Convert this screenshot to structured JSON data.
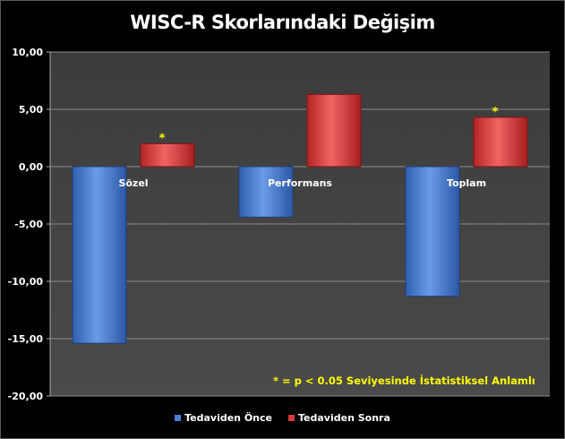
{
  "chart_data": {
    "type": "bar",
    "title": "WISC-R Skorlarındaki Değişim",
    "categories": [
      "Sözel",
      "Performans",
      "Toplam"
    ],
    "series": [
      {
        "name": "Tedaviden Önce",
        "values": [
          -15.4,
          -4.4,
          -11.3
        ],
        "color": "#4a7fd4"
      },
      {
        "name": "Tedaviden Sonra",
        "values": [
          2.0,
          6.3,
          4.3
        ],
        "color": "#d83a3a"
      }
    ],
    "significance_markers": [
      {
        "category": "Sözel",
        "series": "Tedaviden Sonra",
        "label": "*"
      },
      {
        "category": "Toplam",
        "series": "Tedaviden Sonra",
        "label": "*"
      }
    ],
    "annotation": "*  =  p < 0.05 Seviyesinde İstatistiksel Anlamlı",
    "ylim": [
      -20,
      10
    ],
    "yticks": [
      10,
      5,
      0,
      -5,
      -10,
      -15,
      -20
    ],
    "ytick_labels": [
      "10,00",
      "5,00",
      "0,00",
      "-5,00",
      "-10,00",
      "-15,00",
      "-20,00"
    ],
    "xlabel": "",
    "ylabel": "",
    "grid": true,
    "legend_position": "bottom",
    "background_color": "#000000",
    "plot_background_color": "#404040"
  }
}
